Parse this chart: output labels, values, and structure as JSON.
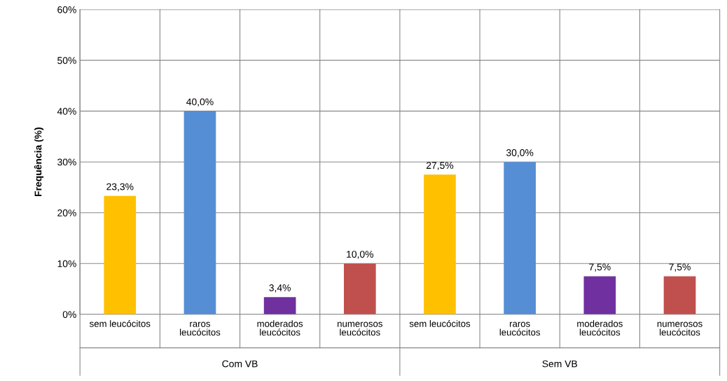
{
  "chart_data": {
    "type": "bar",
    "ylabel": "Frequência (%)",
    "categories": [
      "sem leucócitos",
      "raros\nleucócitos",
      "moderados\nleucócitos",
      "numerosos\nleucócitos",
      "sem leucócitos",
      "raros\nleucócitos",
      "moderados\nleucócitos",
      "numerosos\nleucócitos"
    ],
    "values": [
      23.3,
      40.0,
      3.4,
      10.0,
      27.5,
      30.0,
      7.5,
      7.5
    ],
    "value_labels": [
      "23,3%",
      "40,0%",
      "3,4%",
      "10,0%",
      "27,5%",
      "30,0%",
      "7,5%",
      "7,5%"
    ],
    "colors": [
      "#ffc000",
      "#558ed5",
      "#7030a0",
      "#c0504d",
      "#ffc000",
      "#558ed5",
      "#7030a0",
      "#c0504d"
    ],
    "ylim": [
      0,
      60
    ],
    "yticks": [
      {
        "value": 0,
        "label": "0%"
      },
      {
        "value": 10,
        "label": "10%"
      },
      {
        "value": 20,
        "label": "20%"
      },
      {
        "value": 30,
        "label": "30%"
      },
      {
        "value": 40,
        "label": "40%"
      },
      {
        "value": 50,
        "label": "50%"
      },
      {
        "value": 60,
        "label": "60%"
      }
    ],
    "annotations": [
      "Com VB",
      "Sem VB"
    ],
    "grid": "y"
  }
}
